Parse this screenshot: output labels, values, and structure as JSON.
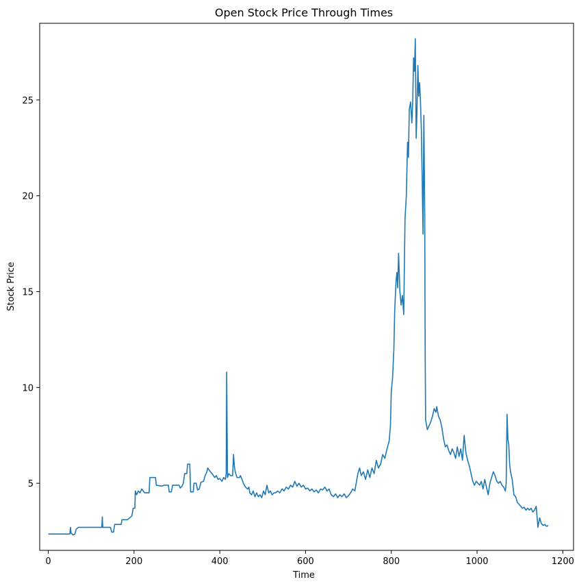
{
  "chart_data": {
    "type": "line",
    "title": "Open Stock Price Through Times",
    "xlabel": "Time",
    "ylabel": "Stock Price",
    "xlim": [
      -20,
      1225
    ],
    "ylim": [
      1.5,
      29
    ],
    "xticks": [
      0,
      200,
      400,
      600,
      800,
      1000,
      1200
    ],
    "yticks": [
      5,
      10,
      15,
      20,
      25
    ],
    "grid": false,
    "legend": "none",
    "series": [
      {
        "color": "#1f77b4",
        "points": [
          [
            0,
            2.35
          ],
          [
            50,
            2.35
          ],
          [
            52,
            2.7
          ],
          [
            53,
            2.4
          ],
          [
            56,
            2.35
          ],
          [
            58,
            2.3
          ],
          [
            62,
            2.35
          ],
          [
            65,
            2.6
          ],
          [
            70,
            2.7
          ],
          [
            125,
            2.7
          ],
          [
            126,
            3.25
          ],
          [
            127,
            2.7
          ],
          [
            145,
            2.7
          ],
          [
            148,
            2.45
          ],
          [
            152,
            2.45
          ],
          [
            155,
            2.85
          ],
          [
            170,
            2.85
          ],
          [
            172,
            3.1
          ],
          [
            185,
            3.1
          ],
          [
            195,
            3.3
          ],
          [
            198,
            3.7
          ],
          [
            202,
            3.7
          ],
          [
            203,
            4.6
          ],
          [
            206,
            4.4
          ],
          [
            210,
            4.6
          ],
          [
            214,
            4.5
          ],
          [
            218,
            4.7
          ],
          [
            225,
            4.5
          ],
          [
            235,
            4.5
          ],
          [
            237,
            5.3
          ],
          [
            250,
            5.3
          ],
          [
            252,
            4.9
          ],
          [
            265,
            4.85
          ],
          [
            270,
            4.9
          ],
          [
            280,
            4.9
          ],
          [
            282,
            4.55
          ],
          [
            287,
            4.55
          ],
          [
            290,
            4.9
          ],
          [
            305,
            4.9
          ],
          [
            308,
            4.75
          ],
          [
            312,
            4.85
          ],
          [
            315,
            5.0
          ],
          [
            318,
            5.5
          ],
          [
            323,
            5.5
          ],
          [
            325,
            6.0
          ],
          [
            330,
            6.0
          ],
          [
            332,
            4.55
          ],
          [
            338,
            4.55
          ],
          [
            340,
            5.0
          ],
          [
            345,
            5.0
          ],
          [
            348,
            4.65
          ],
          [
            352,
            4.7
          ],
          [
            356,
            5.05
          ],
          [
            362,
            5.1
          ],
          [
            366,
            5.4
          ],
          [
            370,
            5.6
          ],
          [
            372,
            5.8
          ],
          [
            378,
            5.6
          ],
          [
            382,
            5.5
          ],
          [
            388,
            5.3
          ],
          [
            392,
            5.4
          ],
          [
            396,
            5.2
          ],
          [
            400,
            5.25
          ],
          [
            405,
            5.1
          ],
          [
            409,
            5.3
          ],
          [
            413,
            5.2
          ],
          [
            415,
            5.5
          ],
          [
            416,
            10.8
          ],
          [
            418,
            5.3
          ],
          [
            421,
            5.5
          ],
          [
            425,
            5.4
          ],
          [
            430,
            5.4
          ],
          [
            432,
            6.5
          ],
          [
            434,
            5.9
          ],
          [
            436,
            5.6
          ],
          [
            440,
            5.3
          ],
          [
            446,
            5.3
          ],
          [
            448,
            5.4
          ],
          [
            452,
            5.2
          ],
          [
            455,
            5.0
          ],
          [
            460,
            4.8
          ],
          [
            465,
            4.7
          ],
          [
            468,
            4.8
          ],
          [
            470,
            4.5
          ],
          [
            474,
            4.4
          ],
          [
            478,
            4.6
          ],
          [
            482,
            4.3
          ],
          [
            486,
            4.5
          ],
          [
            490,
            4.3
          ],
          [
            494,
            4.4
          ],
          [
            498,
            4.25
          ],
          [
            502,
            4.6
          ],
          [
            506,
            4.4
          ],
          [
            510,
            4.9
          ],
          [
            514,
            4.5
          ],
          [
            518,
            4.6
          ],
          [
            522,
            4.4
          ],
          [
            526,
            4.5
          ],
          [
            530,
            4.5
          ],
          [
            535,
            4.6
          ],
          [
            540,
            4.5
          ],
          [
            545,
            4.7
          ],
          [
            550,
            4.6
          ],
          [
            555,
            4.8
          ],
          [
            560,
            4.7
          ],
          [
            565,
            4.9
          ],
          [
            570,
            4.8
          ],
          [
            575,
            5.1
          ],
          [
            580,
            4.85
          ],
          [
            585,
            5.0
          ],
          [
            590,
            4.8
          ],
          [
            595,
            4.9
          ],
          [
            600,
            4.7
          ],
          [
            605,
            4.75
          ],
          [
            610,
            4.6
          ],
          [
            615,
            4.7
          ],
          [
            620,
            4.55
          ],
          [
            625,
            4.65
          ],
          [
            630,
            4.5
          ],
          [
            635,
            4.7
          ],
          [
            640,
            4.65
          ],
          [
            645,
            4.8
          ],
          [
            650,
            4.6
          ],
          [
            655,
            4.7
          ],
          [
            660,
            4.4
          ],
          [
            665,
            4.3
          ],
          [
            670,
            4.45
          ],
          [
            675,
            4.25
          ],
          [
            680,
            4.4
          ],
          [
            685,
            4.3
          ],
          [
            690,
            4.45
          ],
          [
            695,
            4.25
          ],
          [
            700,
            4.35
          ],
          [
            705,
            4.5
          ],
          [
            710,
            4.7
          ],
          [
            715,
            4.6
          ],
          [
            718,
            5.0
          ],
          [
            722,
            5.5
          ],
          [
            726,
            5.8
          ],
          [
            730,
            5.4
          ],
          [
            735,
            5.6
          ],
          [
            740,
            5.2
          ],
          [
            745,
            5.7
          ],
          [
            750,
            5.3
          ],
          [
            755,
            5.8
          ],
          [
            760,
            5.5
          ],
          [
            765,
            6.2
          ],
          [
            770,
            5.8
          ],
          [
            775,
            6.0
          ],
          [
            780,
            6.5
          ],
          [
            785,
            6.3
          ],
          [
            790,
            6.8
          ],
          [
            795,
            7.2
          ],
          [
            798,
            8.0
          ],
          [
            800,
            9.8
          ],
          [
            803,
            10.5
          ],
          [
            806,
            12.0
          ],
          [
            808,
            14.0
          ],
          [
            811,
            15.5
          ],
          [
            813,
            16.0
          ],
          [
            815,
            15.2
          ],
          [
            817,
            17.0
          ],
          [
            820,
            15.0
          ],
          [
            823,
            14.3
          ],
          [
            826,
            14.8
          ],
          [
            829,
            13.8
          ],
          [
            832,
            18.8
          ],
          [
            835,
            20.0
          ],
          [
            838,
            22.8
          ],
          [
            840,
            22.0
          ],
          [
            842,
            24.5
          ],
          [
            845,
            24.9
          ],
          [
            848,
            23.8
          ],
          [
            850,
            25.0
          ],
          [
            852,
            27.2
          ],
          [
            854,
            26.5
          ],
          [
            856,
            28.2
          ],
          [
            858,
            23.0
          ],
          [
            860,
            24.5
          ],
          [
            862,
            26.8
          ],
          [
            864,
            25.2
          ],
          [
            866,
            25.9
          ],
          [
            868,
            25.0
          ],
          [
            870,
            23.5
          ],
          [
            872,
            21.0
          ],
          [
            874,
            18.0
          ],
          [
            876,
            24.2
          ],
          [
            878,
            19.0
          ],
          [
            879,
            12.0
          ],
          [
            880,
            8.3
          ],
          [
            884,
            7.8
          ],
          [
            888,
            8.0
          ],
          [
            892,
            8.2
          ],
          [
            896,
            8.5
          ],
          [
            900,
            8.9
          ],
          [
            904,
            8.7
          ],
          [
            906,
            9.0
          ],
          [
            910,
            8.5
          ],
          [
            914,
            8.3
          ],
          [
            918,
            7.9
          ],
          [
            922,
            7.3
          ],
          [
            926,
            6.9
          ],
          [
            930,
            7.0
          ],
          [
            934,
            6.7
          ],
          [
            938,
            6.5
          ],
          [
            942,
            6.8
          ],
          [
            946,
            6.6
          ],
          [
            950,
            6.3
          ],
          [
            954,
            6.9
          ],
          [
            958,
            6.4
          ],
          [
            962,
            6.8
          ],
          [
            966,
            6.2
          ],
          [
            970,
            7.5
          ],
          [
            974,
            6.6
          ],
          [
            978,
            6.2
          ],
          [
            982,
            5.9
          ],
          [
            986,
            5.5
          ],
          [
            990,
            5.1
          ],
          [
            994,
            4.9
          ],
          [
            998,
            5.1
          ],
          [
            1002,
            5.0
          ],
          [
            1006,
            4.9
          ],
          [
            1010,
            5.1
          ],
          [
            1014,
            4.7
          ],
          [
            1018,
            5.2
          ],
          [
            1022,
            4.8
          ],
          [
            1026,
            4.4
          ],
          [
            1030,
            5.0
          ],
          [
            1034,
            5.3
          ],
          [
            1038,
            5.6
          ],
          [
            1042,
            5.4
          ],
          [
            1046,
            5.1
          ],
          [
            1050,
            5.0
          ],
          [
            1054,
            5.1
          ],
          [
            1058,
            4.9
          ],
          [
            1062,
            4.8
          ],
          [
            1066,
            4.6
          ],
          [
            1068,
            5.0
          ],
          [
            1070,
            8.6
          ],
          [
            1072,
            7.3
          ],
          [
            1074,
            7.0
          ],
          [
            1076,
            6.0
          ],
          [
            1078,
            5.6
          ],
          [
            1082,
            5.2
          ],
          [
            1086,
            4.4
          ],
          [
            1090,
            4.3
          ],
          [
            1094,
            4.0
          ],
          [
            1098,
            3.9
          ],
          [
            1102,
            3.8
          ],
          [
            1106,
            3.7
          ],
          [
            1110,
            3.75
          ],
          [
            1114,
            3.6
          ],
          [
            1118,
            3.7
          ],
          [
            1122,
            3.6
          ],
          [
            1126,
            3.7
          ],
          [
            1130,
            3.5
          ],
          [
            1134,
            3.6
          ],
          [
            1138,
            3.8
          ],
          [
            1142,
            2.7
          ],
          [
            1146,
            3.2
          ],
          [
            1150,
            2.9
          ],
          [
            1154,
            2.8
          ],
          [
            1158,
            2.85
          ],
          [
            1162,
            2.75
          ],
          [
            1166,
            2.8
          ]
        ]
      }
    ]
  }
}
